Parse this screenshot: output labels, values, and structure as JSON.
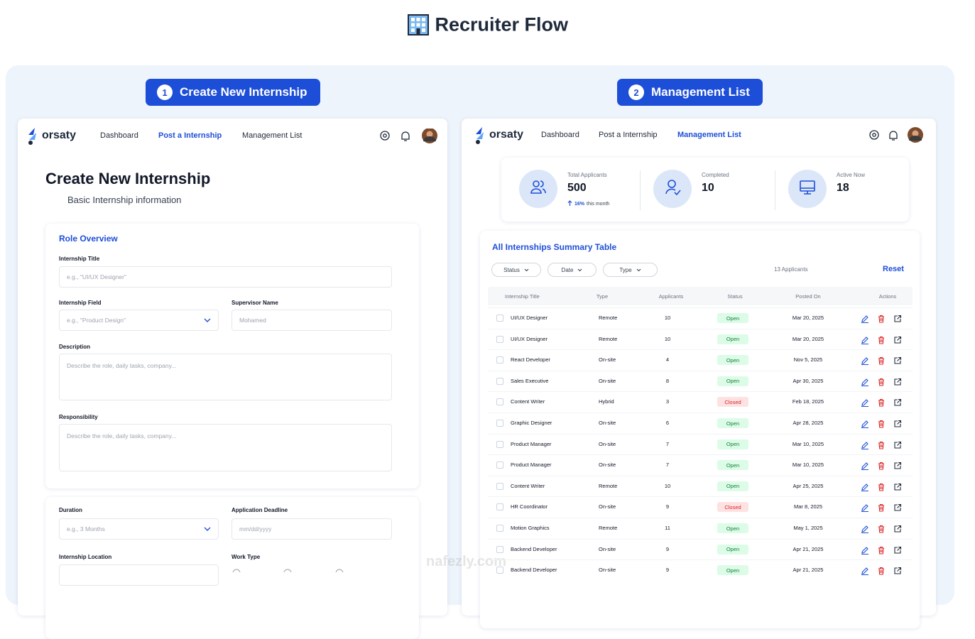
{
  "header": {
    "title": "Recruiter Flow"
  },
  "create": {
    "step": "1",
    "step_title": "Create New Internship",
    "nav": {
      "logo": "orsaty",
      "links": [
        "Dashboard",
        "Post a Internship",
        "Management List"
      ]
    },
    "heading": "Create New Internship",
    "subheading": "Basic Internship information",
    "section": "Role Overview",
    "fields": [
      {
        "label": "Internship Title",
        "placeholder": "e.g., \"UI/UX Designer\""
      },
      {
        "label": "Internship Field",
        "placeholder": "e.g., \"Product Design\""
      },
      {
        "label": "Supervisor Name",
        "placeholder": "Mohamed"
      },
      {
        "label": "Description",
        "placeholder": "Describe the role, daily tasks, company..."
      },
      {
        "label": "Responsibility",
        "placeholder": "Describe the role, daily tasks, company..."
      },
      {
        "label": "Duration",
        "placeholder": "e.g., 3 Months"
      },
      {
        "label": "Application Deadline",
        "placeholder": "mm/dd/yyyy"
      },
      {
        "label": "Internship Location"
      },
      {
        "label": "Work Type"
      }
    ]
  },
  "management": {
    "step": "2",
    "step_title": "Management List",
    "nav": {
      "logo": "orsaty",
      "links": [
        "Dashboard",
        "Post a Internship",
        "Management List"
      ]
    },
    "stats": [
      {
        "label": "Total Applicants",
        "value": 500,
        "change": "16%",
        "change_label": "this month"
      },
      {
        "label": "Completed",
        "value": 10
      },
      {
        "label": "Active Now",
        "value": 18
      }
    ],
    "table_title": "All Internships Summary Table",
    "filters": [
      "Status",
      "Date",
      "Type"
    ],
    "count": "13 Applicants",
    "reset": "Reset",
    "columns": [
      "Internship Title",
      "Type",
      "Applicants",
      "Status",
      "Posted On",
      "Actions"
    ],
    "rows": [
      [
        "UI/UX Designer",
        "Remote",
        10,
        "Open",
        "Mar 20, 2025"
      ],
      [
        "UI/UX Designer",
        "Remote",
        10,
        "Open",
        "Mar 20, 2025"
      ],
      [
        "React Developer",
        "On-site",
        4,
        "Open",
        "Nov 5, 2025"
      ],
      [
        "Sales Executive",
        "On-site",
        8,
        "Open",
        "Apr 30, 2025"
      ],
      [
        "Content Writer",
        "Hybrid",
        3,
        "Closed",
        "Feb 18, 2025"
      ],
      [
        "Graphic Designer",
        "On-site",
        6,
        "Open",
        "Apr 28, 2025"
      ],
      [
        "Product Manager",
        "On-site",
        7,
        "Open",
        "Mar 10, 2025"
      ],
      [
        "Product Manager",
        "On-site",
        7,
        "Open",
        "Mar 10, 2025"
      ],
      [
        "Content Writer",
        "Remote",
        10,
        "Open",
        "Apr 25, 2025"
      ],
      [
        "HR Coordinator",
        "On-site",
        9,
        "Closed",
        "Mar 8, 2025"
      ],
      [
        "Motion Graphics",
        "Remote",
        11,
        "Open",
        "May 1, 2025"
      ],
      [
        "Backend Developer",
        "On-site",
        9,
        "Open",
        "Apr 21, 2025"
      ],
      [
        "Backend Developer",
        "On-site",
        9,
        "Open",
        "Apr 21, 2025"
      ]
    ]
  },
  "watermark": "nafezly.com"
}
